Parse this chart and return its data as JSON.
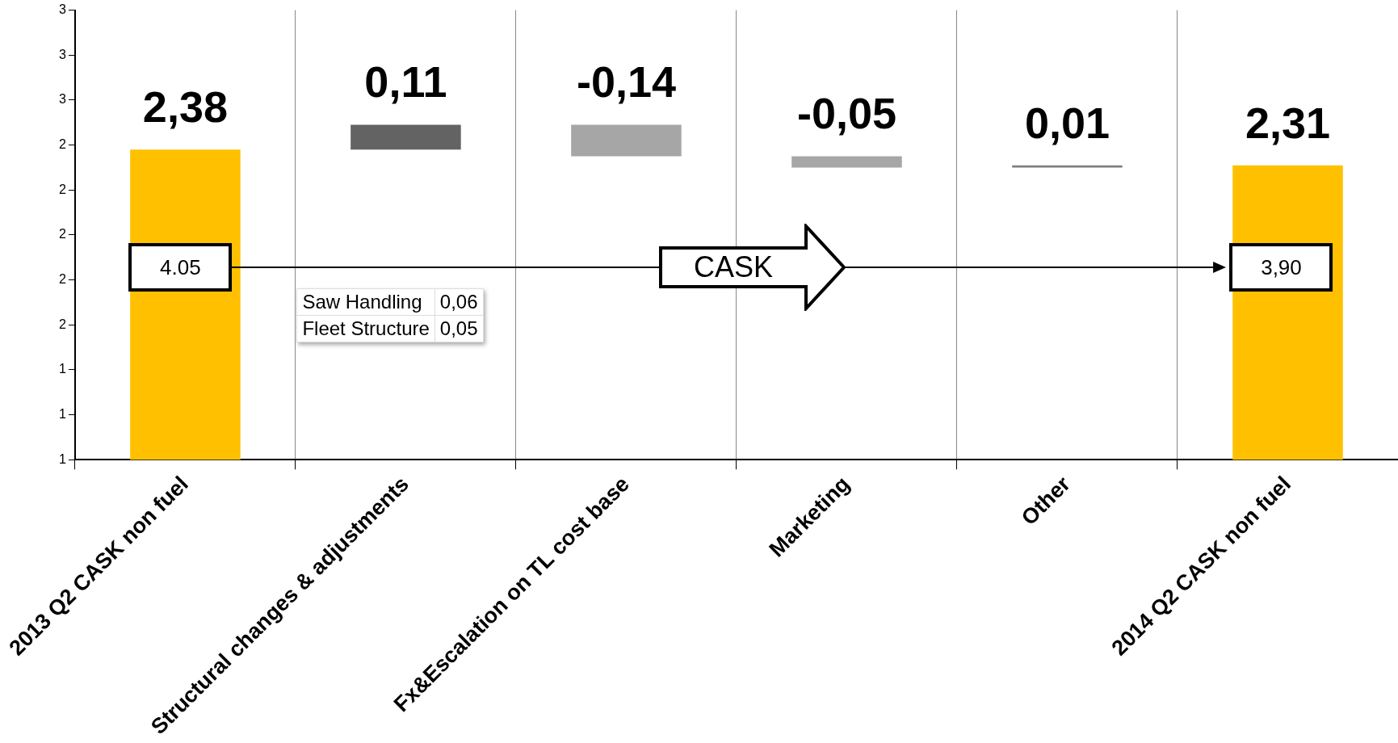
{
  "chart_data": {
    "type": "bar",
    "categories": [
      "2013 Q2 CASK non fuel",
      "Structural changes & adjustments",
      "Fx&Escalation on TL cost base",
      "Marketing",
      "Other",
      "2014 Q2 CASK non fuel"
    ],
    "values": [
      2.38,
      0.11,
      -0.14,
      -0.05,
      0.01,
      2.31
    ],
    "base": [
      null,
      2.38,
      2.49,
      2.35,
      2.3,
      null
    ],
    "colors": [
      "#ffc000",
      "#636363",
      "#a6a6a6",
      "#a6a6a6",
      "#7f7f7f",
      "#ffc000"
    ],
    "value_labels": [
      "2,38",
      "0,11",
      "-0,14",
      "-0,05",
      "0,01",
      "2,31"
    ],
    "ylim": [
      1,
      3
    ],
    "yticks": [
      1,
      {
        "value": 1.2,
        "label": "1"
      },
      {
        "value": 1.4,
        "label": "1"
      },
      {
        "value": 1.6,
        "label": "2"
      },
      {
        "value": 1.8,
        "label": "2"
      },
      2,
      {
        "value": 2.2,
        "label": "2"
      },
      {
        "value": 2.4,
        "label": "2"
      },
      {
        "value": 2.6,
        "label": "3"
      },
      {
        "value": 2.8,
        "label": "3"
      },
      3
    ],
    "grid": "x",
    "legend": false,
    "annotations": [
      "4.05",
      "3,90",
      "CASK",
      "Saw Handling",
      "0,06",
      "Fleet Structure",
      "0,05"
    ]
  }
}
